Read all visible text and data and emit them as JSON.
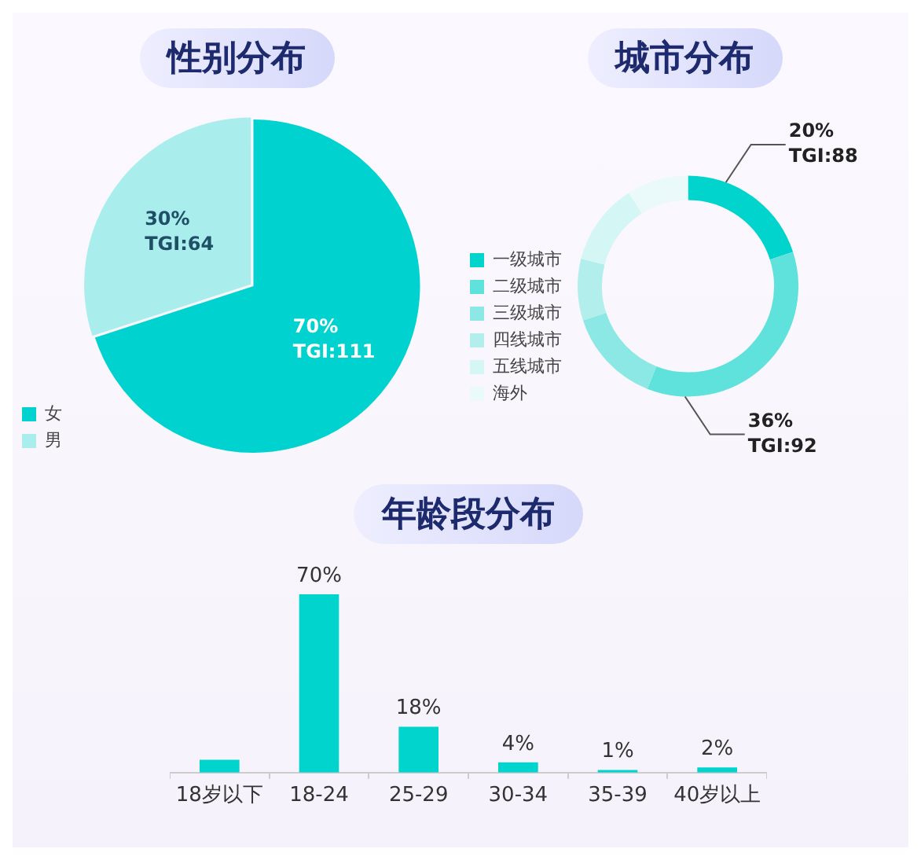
{
  "chart_data": [
    {
      "type": "pie",
      "title": "性别分布",
      "categories": [
        "女",
        "男"
      ],
      "values": [
        70,
        30
      ],
      "colors": [
        "#00d2d0",
        "#a9eeec"
      ],
      "value_labels": [
        "70%\nTGI:111",
        "30%\nTGI:64"
      ],
      "legend": "bottom left"
    },
    {
      "type": "donut",
      "title": "城市分布",
      "categories": [
        "一级城市",
        "二级城市",
        "三级城市",
        "四线城市",
        "五线城市",
        "海外"
      ],
      "values": [
        20,
        36,
        14,
        9,
        12,
        9
      ],
      "colors": [
        "#00d4cc",
        "#5fe1dc",
        "#8ce8e4",
        "#b2efec",
        "#d4f6f4",
        "#eaf9f9"
      ],
      "value_labels": [
        "20%\nTGI:88",
        "36%\nTGI:92",
        null,
        null,
        null,
        null
      ],
      "legend": "bottom left"
    },
    {
      "type": "bar",
      "title": "年龄段分布",
      "categories": [
        "18岁以下",
        "18-24",
        "25-29",
        "30-34",
        "35-39",
        "40岁以上"
      ],
      "values": [
        5,
        70,
        18,
        4,
        1,
        2
      ],
      "color": "#00d4cc",
      "value_labels": [
        null,
        "70%",
        "18%",
        "4%",
        "1%",
        "2%"
      ]
    }
  ]
}
